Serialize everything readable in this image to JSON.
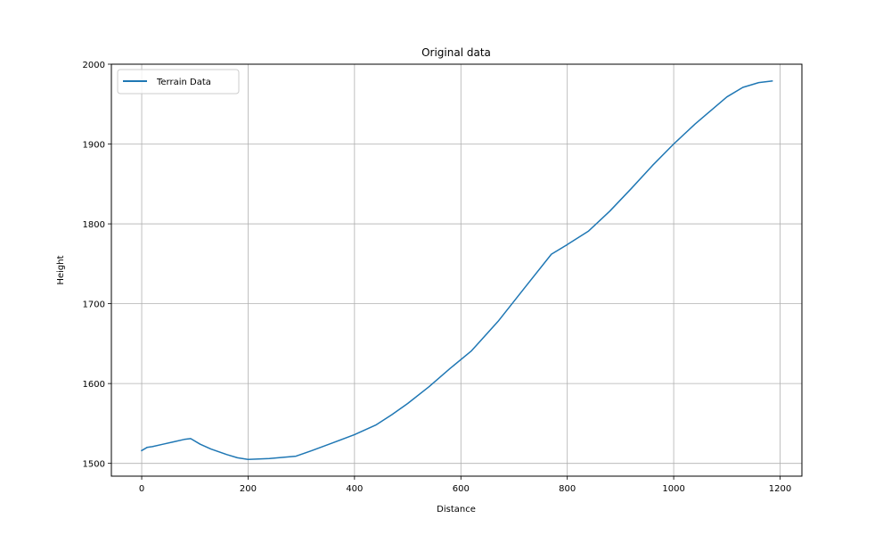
{
  "chart_data": {
    "type": "line",
    "title": "Original data",
    "xlabel": "Distance",
    "ylabel": "Height",
    "xlim": [
      -57,
      1241
    ],
    "ylim": [
      1484,
      2000
    ],
    "xticks": [
      0,
      200,
      400,
      600,
      800,
      1000,
      1200
    ],
    "yticks": [
      1500,
      1600,
      1700,
      1800,
      1900,
      2000
    ],
    "grid": true,
    "legend_position": "top-left",
    "series": [
      {
        "name": "Terrain Data",
        "color": "#1f77b4",
        "x": [
          0,
          10,
          20,
          40,
          60,
          80,
          92,
          110,
          130,
          160,
          180,
          200,
          240,
          290,
          320,
          360,
          400,
          440,
          470,
          500,
          540,
          580,
          620,
          670,
          720,
          770,
          800,
          840,
          880,
          920,
          960,
          1000,
          1040,
          1070,
          1100,
          1130,
          1160,
          1185
        ],
        "y": [
          1516,
          1520,
          1521,
          1524,
          1527,
          1530,
          1531,
          1524,
          1518,
          1511,
          1507,
          1505,
          1506,
          1509,
          1516,
          1526,
          1536,
          1548,
          1561,
          1575,
          1596,
          1619,
          1641,
          1678,
          1720,
          1762,
          1774,
          1791,
          1816,
          1844,
          1873,
          1900,
          1925,
          1942,
          1959,
          1971,
          1977,
          1979
        ]
      }
    ]
  }
}
